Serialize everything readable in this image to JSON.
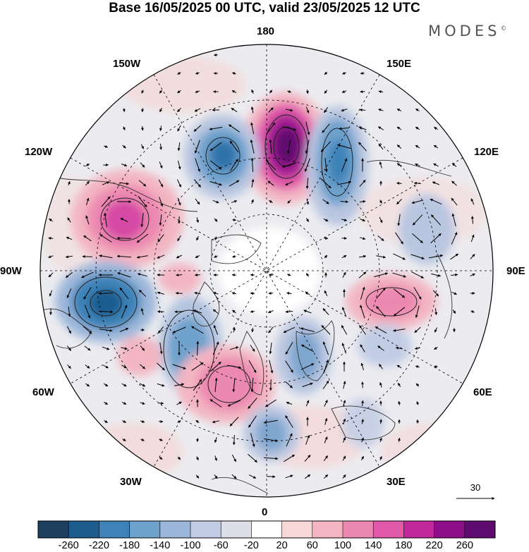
{
  "header": {
    "title": "Base 16/05/2025 00 UTC, valid 23/05/2025 12 UTC",
    "brand": "MODES"
  },
  "map": {
    "projection": "north-polar-stereographic",
    "longitude_labels": {
      "top": "180",
      "bottom": "0",
      "left": "90W",
      "right": "90E",
      "upper_left_1": "150W",
      "upper_left_2": "120W",
      "upper_right_1": "150E",
      "upper_right_2": "120E",
      "lower_left_1": "60W",
      "lower_left_2": "30W",
      "lower_right_1": "60E",
      "lower_right_2": "30E"
    },
    "reference_vector": {
      "label": "30"
    },
    "anomaly_centers": [
      {
        "sign": "positive",
        "max_level": 260,
        "near": "east of dateline, 60-70N"
      },
      {
        "sign": "negative",
        "max_level": -180,
        "near": "Bering Sea"
      },
      {
        "sign": "negative",
        "max_level": -140,
        "near": "East Siberia"
      },
      {
        "sign": "positive",
        "max_level": 180,
        "near": "Gulf of Alaska / NE Pacific"
      },
      {
        "sign": "negative",
        "max_level": -220,
        "near": "Hudson Bay / NE Canada"
      },
      {
        "sign": "positive",
        "max_level": 140,
        "near": "Greenland Sea / North Atlantic"
      },
      {
        "sign": "negative",
        "max_level": -140,
        "near": "Scandinavia"
      },
      {
        "sign": "positive",
        "max_level": 140,
        "near": "Central Siberia"
      },
      {
        "sign": "negative",
        "max_level": -100,
        "near": "Western Siberia"
      }
    ]
  },
  "colorbar": {
    "ticks": [
      "-260",
      "-220",
      "-180",
      "-140",
      "-100",
      "-60",
      "-20",
      "20",
      "60",
      "100",
      "140",
      "180",
      "220",
      "260"
    ],
    "colors": [
      "#1c3f5e",
      "#1f5c8e",
      "#3d83b8",
      "#6ea1cc",
      "#9db7da",
      "#c2cce4",
      "#dedee8",
      "#ffffff",
      "#f7d7d7",
      "#f3b5c2",
      "#ec89b0",
      "#e05aa9",
      "#c0289b",
      "#8e0e8a",
      "#5e0a6e"
    ]
  }
}
